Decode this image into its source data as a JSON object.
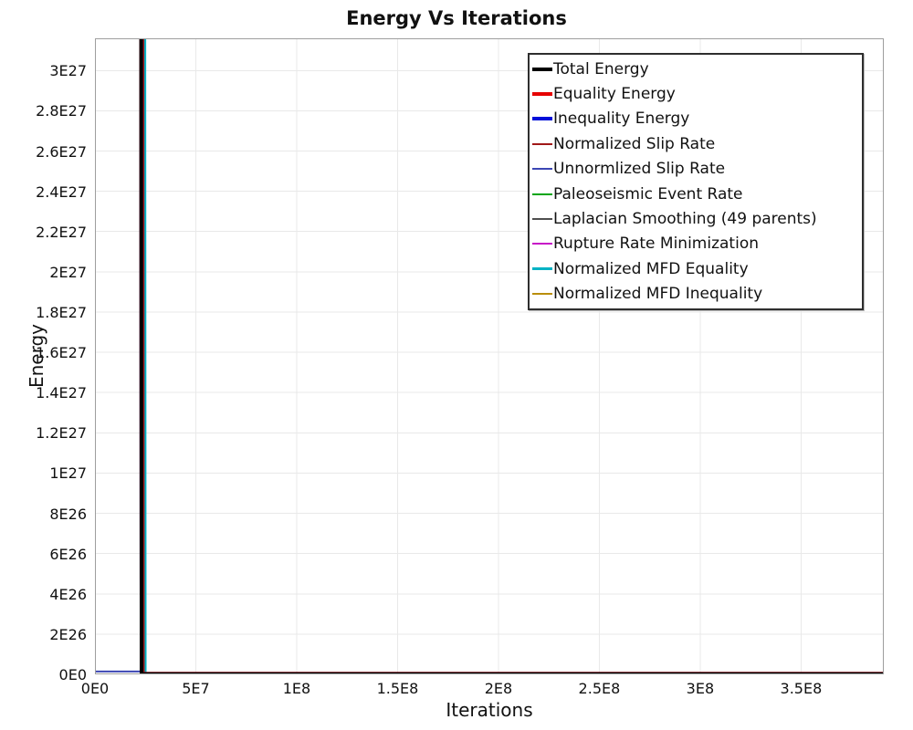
{
  "chart_data": {
    "type": "line",
    "title": "Energy Vs Iterations",
    "xlabel": "Iterations",
    "ylabel": "Energy",
    "xlim": [
      0,
      391000000.0
    ],
    "ylim": [
      0,
      3.16e+27
    ],
    "grid": true,
    "legend_position": "inside-top-right",
    "x_ticks": [
      {
        "value": 0,
        "label": "0E0"
      },
      {
        "value": 50000000.0,
        "label": "5E7"
      },
      {
        "value": 100000000.0,
        "label": "1E8"
      },
      {
        "value": 150000000.0,
        "label": "1.5E8"
      },
      {
        "value": 200000000.0,
        "label": "2E8"
      },
      {
        "value": 250000000.0,
        "label": "2.5E8"
      },
      {
        "value": 300000000.0,
        "label": "3E8"
      },
      {
        "value": 350000000.0,
        "label": "3.5E8"
      }
    ],
    "y_ticks": [
      {
        "value": 0,
        "label": "0E0"
      },
      {
        "value": 2e+26,
        "label": "2E26"
      },
      {
        "value": 4e+26,
        "label": "4E26"
      },
      {
        "value": 6e+26,
        "label": "6E26"
      },
      {
        "value": 8e+26,
        "label": "8E26"
      },
      {
        "value": 1e+27,
        "label": "1E27"
      },
      {
        "value": 1.2e+27,
        "label": "1.2E27"
      },
      {
        "value": 1.4e+27,
        "label": "1.4E27"
      },
      {
        "value": 1.6e+27,
        "label": "1.6E27"
      },
      {
        "value": 1.8e+27,
        "label": "1.8E27"
      },
      {
        "value": 2e+27,
        "label": "2E27"
      },
      {
        "value": 2.2e+27,
        "label": "2.2E27"
      },
      {
        "value": 2.4e+27,
        "label": "2.4E27"
      },
      {
        "value": 2.6e+27,
        "label": "2.6E27"
      },
      {
        "value": 2.8e+27,
        "label": "2.8E27"
      },
      {
        "value": 3e+27,
        "label": "3E27"
      }
    ],
    "annotation": "All energy series spike at ~2.3E7 iterations (peak clipped above y-axis max) then collapse to ~0 for the remainder of the run",
    "series": [
      {
        "name": "Total Energy",
        "color": "#000000",
        "width": 4,
        "points": [
          [
            22900000.0,
            3.3e+27
          ],
          [
            23100000.0,
            1e+24
          ],
          [
            391000000.0,
            1e+24
          ]
        ]
      },
      {
        "name": "Equality Energy",
        "color": "#e60000",
        "width": 4,
        "points": [
          [
            22900000.0,
            3.3e+27
          ],
          [
            23100000.0,
            9e+23
          ],
          [
            391000000.0,
            9e+23
          ]
        ]
      },
      {
        "name": "Inequality Energy",
        "color": "#0010d9",
        "width": 4,
        "points": [
          [
            22900000.0,
            3.3e+27
          ],
          [
            23100000.0,
            8e+23
          ],
          [
            391000000.0,
            8e+23
          ]
        ]
      },
      {
        "name": "Normalized Slip Rate",
        "color": "#a01818",
        "width": 2,
        "points": [
          [
            24000000.0,
            3.3e+27
          ],
          [
            24200000.0,
            8e+24
          ],
          [
            391000000.0,
            8e+24
          ]
        ]
      },
      {
        "name": "Unnormlized Slip Rate",
        "color": "#3c46b4",
        "width": 2,
        "points": [
          [
            0,
            1.4e+25
          ],
          [
            24000000.0,
            1.4e+25
          ],
          [
            24000000.0,
            3.3e+27
          ],
          [
            24200000.0,
            6e+24
          ],
          [
            391000000.0,
            6e+24
          ]
        ]
      },
      {
        "name": "Paleoseismic Event Rate",
        "color": "#00a513",
        "width": 2,
        "points": [
          [
            22900000.0,
            3.3e+27
          ],
          [
            23100000.0,
            7e+23
          ],
          [
            391000000.0,
            7e+23
          ]
        ]
      },
      {
        "name": "Laplacian Smoothing (49 parents)",
        "color": "#4f4f4f",
        "width": 2,
        "points": [
          [
            22900000.0,
            3.3e+27
          ],
          [
            23100000.0,
            6e+23
          ],
          [
            391000000.0,
            6e+23
          ]
        ]
      },
      {
        "name": "Rupture Rate Minimization",
        "color": "#c713c7",
        "width": 2,
        "points": [
          [
            22900000.0,
            3.3e+27
          ],
          [
            23100000.0,
            5e+23
          ],
          [
            391000000.0,
            5e+23
          ]
        ]
      },
      {
        "name": "Normalized MFD Equality",
        "color": "#00b2c4",
        "width": 3,
        "points": [
          [
            24700000.0,
            3.3e+27
          ],
          [
            24900000.0,
            1.5e+24
          ],
          [
            391000000.0,
            1.5e+24
          ]
        ]
      },
      {
        "name": "Normalized MFD Inequality",
        "color": "#b98e0b",
        "width": 2,
        "points": [
          [
            0,
            2e+23
          ],
          [
            22900000.0,
            2e+23
          ],
          [
            22900000.0,
            3.3e+27
          ],
          [
            23100000.0,
            2e+23
          ],
          [
            391000000.0,
            2e+23
          ]
        ]
      }
    ]
  },
  "colors": {
    "background": "#ffffff",
    "grid": "#e9e9e9",
    "frame": "#9e9e9e",
    "text": "#111111",
    "legend_border": "#2e2e2e"
  }
}
